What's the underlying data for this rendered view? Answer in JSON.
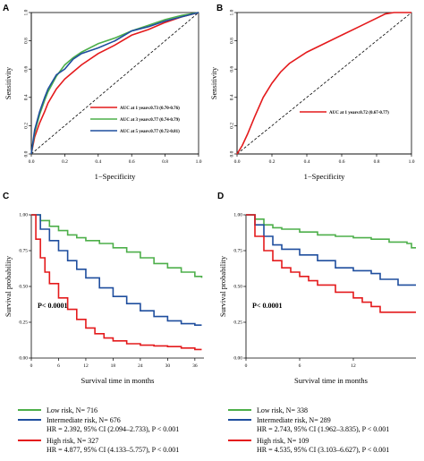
{
  "chart_data": [
    {
      "panel": "A",
      "type": "line",
      "xlabel": "1−Specificity",
      "ylabel": "Sensitivity",
      "xlim": [
        0,
        1
      ],
      "ylim": [
        0,
        1
      ],
      "xticks": [
        "0.0",
        "0.2",
        "0.4",
        "0.6",
        "0.8",
        "1.0"
      ],
      "yticks": [
        "0.0",
        "0.2",
        "0.4",
        "0.6",
        "0.8",
        "1.0"
      ],
      "legend_position": "bottom-right",
      "reference_diagonal": true,
      "series": [
        {
          "name": "AUC at 1 years:0.73 (0.70-0.76)",
          "color": "#e41a1c",
          "points": [
            [
              0,
              0
            ],
            [
              0.02,
              0.12
            ],
            [
              0.05,
              0.22
            ],
            [
              0.08,
              0.3
            ],
            [
              0.1,
              0.36
            ],
            [
              0.15,
              0.46
            ],
            [
              0.2,
              0.53
            ],
            [
              0.25,
              0.58
            ],
            [
              0.3,
              0.63
            ],
            [
              0.4,
              0.71
            ],
            [
              0.5,
              0.77
            ],
            [
              0.6,
              0.84
            ],
            [
              0.7,
              0.88
            ],
            [
              0.8,
              0.93
            ],
            [
              0.9,
              0.97
            ],
            [
              1,
              1
            ]
          ]
        },
        {
          "name": "AUC at 3 years:0.77 (0.74-0.79)",
          "color": "#4daf4a",
          "points": [
            [
              0,
              0
            ],
            [
              0.02,
              0.15
            ],
            [
              0.05,
              0.28
            ],
            [
              0.08,
              0.38
            ],
            [
              0.1,
              0.44
            ],
            [
              0.15,
              0.55
            ],
            [
              0.2,
              0.63
            ],
            [
              0.25,
              0.68
            ],
            [
              0.3,
              0.72
            ],
            [
              0.4,
              0.78
            ],
            [
              0.5,
              0.82
            ],
            [
              0.6,
              0.87
            ],
            [
              0.7,
              0.91
            ],
            [
              0.8,
              0.95
            ],
            [
              0.9,
              0.98
            ],
            [
              1,
              1
            ]
          ]
        },
        {
          "name": "AUC at 5 years:0.77 (0.72-0.81)",
          "color": "#1f4e9e",
          "points": [
            [
              0,
              0
            ],
            [
              0.02,
              0.17
            ],
            [
              0.05,
              0.3
            ],
            [
              0.08,
              0.4
            ],
            [
              0.1,
              0.46
            ],
            [
              0.15,
              0.56
            ],
            [
              0.2,
              0.6
            ],
            [
              0.25,
              0.67
            ],
            [
              0.3,
              0.71
            ],
            [
              0.4,
              0.75
            ],
            [
              0.5,
              0.8
            ],
            [
              0.6,
              0.87
            ],
            [
              0.7,
              0.9
            ],
            [
              0.8,
              0.94
            ],
            [
              0.9,
              0.97
            ],
            [
              1,
              1
            ]
          ]
        }
      ]
    },
    {
      "panel": "B",
      "type": "line",
      "xlabel": "1−Specificity",
      "ylabel": "Sensitivity",
      "xlim": [
        0,
        1
      ],
      "ylim": [
        0,
        1
      ],
      "xticks": [
        "0.0",
        "0.2",
        "0.4",
        "0.6",
        "0.8",
        "1.0"
      ],
      "yticks": [
        "0.0",
        "0.2",
        "0.4",
        "0.6",
        "0.8",
        "1.0"
      ],
      "legend_position": "right",
      "reference_diagonal": true,
      "series": [
        {
          "name": "AUC at 1 years:0.72 (0.67-0.77)",
          "color": "#e41a1c",
          "points": [
            [
              0,
              0
            ],
            [
              0.03,
              0.06
            ],
            [
              0.06,
              0.14
            ],
            [
              0.1,
              0.26
            ],
            [
              0.15,
              0.4
            ],
            [
              0.2,
              0.5
            ],
            [
              0.25,
              0.58
            ],
            [
              0.3,
              0.64
            ],
            [
              0.4,
              0.72
            ],
            [
              0.5,
              0.78
            ],
            [
              0.6,
              0.84
            ],
            [
              0.7,
              0.9
            ],
            [
              0.8,
              0.96
            ],
            [
              0.85,
              0.99
            ],
            [
              0.9,
              1.0
            ],
            [
              1,
              1
            ]
          ]
        }
      ]
    },
    {
      "panel": "C",
      "type": "line",
      "xlabel": "Survival time in months",
      "ylabel": "Survival probability",
      "xlim": [
        0,
        38
      ],
      "ylim": [
        0,
        1
      ],
      "xticks": [
        "0",
        "6",
        "12",
        "18",
        "24",
        "30",
        "36"
      ],
      "yticks": [
        "0.00",
        "0.25",
        "0.50",
        "0.75",
        "1.00"
      ],
      "annotation": "P< 0.0001",
      "step": true,
      "series": [
        {
          "name": "Low risk",
          "color": "#4daf4a",
          "points": [
            [
              0,
              1.0
            ],
            [
              2,
              0.96
            ],
            [
              4,
              0.92
            ],
            [
              6,
              0.89
            ],
            [
              8,
              0.86
            ],
            [
              10,
              0.84
            ],
            [
              12,
              0.82
            ],
            [
              15,
              0.8
            ],
            [
              18,
              0.77
            ],
            [
              21,
              0.74
            ],
            [
              24,
              0.7
            ],
            [
              27,
              0.66
            ],
            [
              30,
              0.63
            ],
            [
              33,
              0.6
            ],
            [
              36,
              0.57
            ],
            [
              37.5,
              0.56
            ]
          ]
        },
        {
          "name": "Intermediate risk",
          "color": "#1f4e9e",
          "points": [
            [
              0,
              1.0
            ],
            [
              2,
              0.9
            ],
            [
              4,
              0.82
            ],
            [
              6,
              0.75
            ],
            [
              8,
              0.68
            ],
            [
              10,
              0.62
            ],
            [
              12,
              0.56
            ],
            [
              15,
              0.49
            ],
            [
              18,
              0.43
            ],
            [
              21,
              0.38
            ],
            [
              24,
              0.33
            ],
            [
              27,
              0.29
            ],
            [
              30,
              0.26
            ],
            [
              33,
              0.24
            ],
            [
              36,
              0.23
            ],
            [
              37.5,
              0.23
            ]
          ]
        },
        {
          "name": "High risk",
          "color": "#e41a1c",
          "points": [
            [
              0,
              1.0
            ],
            [
              1,
              0.83
            ],
            [
              2,
              0.7
            ],
            [
              3,
              0.6
            ],
            [
              4,
              0.52
            ],
            [
              6,
              0.42
            ],
            [
              8,
              0.34
            ],
            [
              10,
              0.27
            ],
            [
              12,
              0.21
            ],
            [
              14,
              0.17
            ],
            [
              16,
              0.14
            ],
            [
              18,
              0.12
            ],
            [
              21,
              0.1
            ],
            [
              24,
              0.09
            ],
            [
              27,
              0.085
            ],
            [
              30,
              0.08
            ],
            [
              33,
              0.07
            ],
            [
              36,
              0.06
            ],
            [
              37.5,
              0.06
            ]
          ]
        }
      ]
    },
    {
      "panel": "D",
      "type": "line",
      "xlabel": "Survival time in months",
      "ylabel": "Survival probability",
      "xlim": [
        0,
        19
      ],
      "ylim": [
        0,
        1
      ],
      "xticks": [
        "0",
        "6",
        "12"
      ],
      "yticks": [
        "0.00",
        "0.25",
        "0.50",
        "0.75",
        "1.00"
      ],
      "annotation": "P< 0.0001",
      "step": true,
      "series": [
        {
          "name": "Low risk",
          "color": "#4daf4a",
          "points": [
            [
              0,
              1.0
            ],
            [
              1,
              0.97
            ],
            [
              2,
              0.93
            ],
            [
              3,
              0.91
            ],
            [
              4,
              0.9
            ],
            [
              6,
              0.88
            ],
            [
              8,
              0.86
            ],
            [
              10,
              0.85
            ],
            [
              12,
              0.84
            ],
            [
              14,
              0.83
            ],
            [
              16,
              0.81
            ],
            [
              18,
              0.8
            ],
            [
              18.5,
              0.77
            ],
            [
              19,
              0.77
            ]
          ]
        },
        {
          "name": "Intermediate risk",
          "color": "#1f4e9e",
          "points": [
            [
              0,
              1.0
            ],
            [
              1,
              0.93
            ],
            [
              2,
              0.85
            ],
            [
              3,
              0.79
            ],
            [
              4,
              0.76
            ],
            [
              6,
              0.72
            ],
            [
              8,
              0.68
            ],
            [
              10,
              0.63
            ],
            [
              12,
              0.61
            ],
            [
              14,
              0.59
            ],
            [
              15,
              0.55
            ],
            [
              17,
              0.51
            ],
            [
              19,
              0.51
            ]
          ]
        },
        {
          "name": "High risk",
          "color": "#e41a1c",
          "points": [
            [
              0,
              1.0
            ],
            [
              1,
              0.85
            ],
            [
              2,
              0.75
            ],
            [
              3,
              0.68
            ],
            [
              4,
              0.63
            ],
            [
              5,
              0.6
            ],
            [
              6,
              0.57
            ],
            [
              7,
              0.54
            ],
            [
              8,
              0.51
            ],
            [
              10,
              0.46
            ],
            [
              12,
              0.42
            ],
            [
              13,
              0.39
            ],
            [
              14,
              0.36
            ],
            [
              15,
              0.32
            ],
            [
              19,
              0.32
            ]
          ]
        }
      ]
    }
  ],
  "labels": {
    "panel_a": "A",
    "panel_b": "B",
    "panel_c": "C",
    "panel_d": "D"
  },
  "legend_c": {
    "low": "Low risk, N= 716",
    "intermediate": "Intermediate risk, N= 676",
    "intermediate_hr": "HR = 2.392, 95% CI (2.094–2.733), P < 0.001",
    "high": "High risk, N= 327",
    "high_hr": "HR = 4.877, 95% CI (4.133–5.757), P < 0.001"
  },
  "legend_d": {
    "low": "Low risk, N= 338",
    "intermediate": "Intermediate risk, N= 289",
    "intermediate_hr": "HR = 2.743, 95% CI (1.962–3.835), P < 0.001",
    "high": "High risk, N= 109",
    "high_hr": "HR = 4.535, 95% CI (3.103–6.627), P < 0.001"
  }
}
